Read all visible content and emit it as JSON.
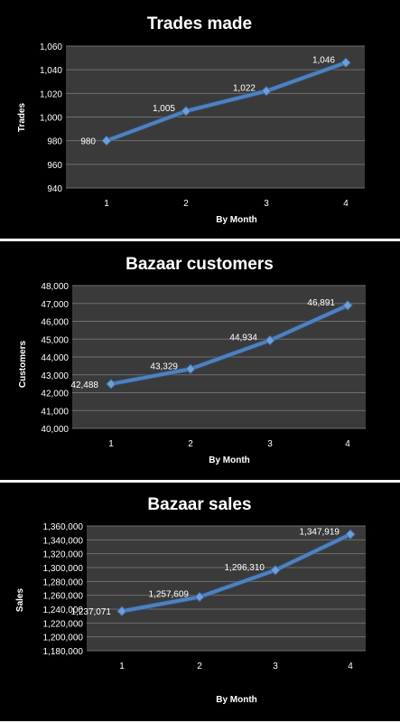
{
  "chart_data": [
    {
      "type": "line",
      "title": "Trades made",
      "xlabel": "By Month",
      "ylabel": "Trades",
      "categories": [
        "1",
        "2",
        "3",
        "4"
      ],
      "values": [
        980,
        1005,
        1022,
        1046
      ],
      "data_labels": [
        "980",
        "1,005",
        "1,022",
        "1,046"
      ],
      "ylim": [
        940,
        1060
      ],
      "yticks": [
        940,
        960,
        980,
        1000,
        1020,
        1040,
        1060
      ],
      "ytick_labels": [
        "940",
        "960",
        "980",
        "1,000",
        "1,020",
        "1,040",
        "1,060"
      ],
      "grid": true,
      "legend": "none",
      "colors": {
        "line": "#4f81bd",
        "plot_area": "#3a3a3a",
        "background": "#000000",
        "gridline": "#6e6e6e"
      }
    },
    {
      "type": "line",
      "title": "Bazaar customers",
      "xlabel": "By Month",
      "ylabel": "Customers",
      "categories": [
        "1",
        "2",
        "3",
        "4"
      ],
      "values": [
        42488,
        43329,
        44934,
        46891
      ],
      "data_labels": [
        "42,488",
        "43,329",
        "44,934",
        "46,891"
      ],
      "ylim": [
        40000,
        48000
      ],
      "yticks": [
        40000,
        41000,
        42000,
        43000,
        44000,
        45000,
        46000,
        47000,
        48000
      ],
      "ytick_labels": [
        "40,000",
        "41,000",
        "42,000",
        "43,000",
        "44,000",
        "45,000",
        "46,000",
        "47,000",
        "48,000"
      ],
      "grid": true,
      "legend": "none",
      "colors": {
        "line": "#4f81bd",
        "plot_area": "#3a3a3a",
        "background": "#000000",
        "gridline": "#6e6e6e"
      }
    },
    {
      "type": "line",
      "title": "Bazaar sales",
      "xlabel": "By Month",
      "ylabel": "Sales",
      "categories": [
        "1",
        "2",
        "3",
        "4"
      ],
      "values": [
        1237071,
        1257609,
        1296310,
        1347919
      ],
      "data_labels": [
        "1,237,071",
        "1,257,609",
        "1,296,310",
        "1,347,919"
      ],
      "ylim": [
        1180000,
        1360000
      ],
      "yticks": [
        1180000,
        1200000,
        1220000,
        1240000,
        1260000,
        1280000,
        1300000,
        1320000,
        1340000,
        1360000
      ],
      "ytick_labels": [
        "1,180,000",
        "1,200,000",
        "1,220,000",
        "1,240,000",
        "1,260,000",
        "1,280,000",
        "1,300,000",
        "1,320,000",
        "1,340,000",
        "1,360,000"
      ],
      "grid": true,
      "legend": "none",
      "colors": {
        "line": "#4f81bd",
        "plot_area": "#3a3a3a",
        "background": "#000000",
        "gridline": "#6e6e6e"
      }
    }
  ]
}
